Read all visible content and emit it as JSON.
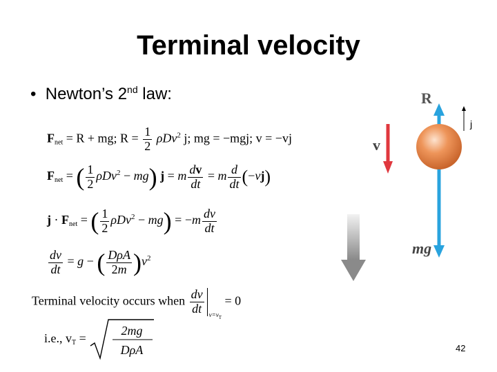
{
  "slide": {
    "title": "Terminal velocity",
    "bullet_text": "Newton’s 2",
    "bullet_sup": "nd",
    "bullet_after": " law:",
    "page_number": "42"
  },
  "equations": {
    "eq1_a": "F",
    "eq1_net": "net",
    "eq1_b": " = R + mg; R = ",
    "eq1_half_num": "1",
    "eq1_half_den": "2",
    "eq1_c": "ρDv",
    "eq1_c2": "2",
    "eq1_d": " j; mg = −mgj; v = −vj",
    "eq5_text": "Terminal velocity occurs when",
    "eq5_num": "dv",
    "eq5_den": "dt",
    "eq5_sub": "v=v",
    "eq5_sub_T": "T",
    "eq5_eq": " = 0",
    "eq6_ie": "i.e., v",
    "eq6_T": "T",
    "eq6_eq": " = ",
    "eq6_num": "2mg",
    "eq6_den": "DρA"
  },
  "figure": {
    "label_R": "R",
    "label_v": "v",
    "label_mg": "mg",
    "label_j": "j",
    "colors": {
      "ball": "#e8874a",
      "blue": "#29a3de",
      "red": "#e0383e",
      "grey": "#8a8a8a"
    }
  }
}
